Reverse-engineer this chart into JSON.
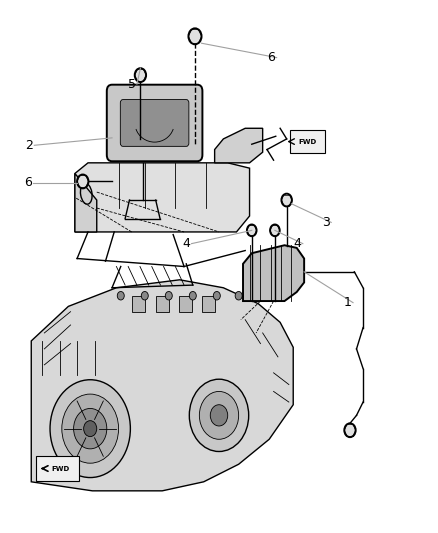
{
  "title": "",
  "background_color": "#ffffff",
  "line_color": "#000000",
  "callout_line_color": "#a0a0a0",
  "text_color": "#000000",
  "fig_width": 4.38,
  "fig_height": 5.33,
  "dpi": 100
}
